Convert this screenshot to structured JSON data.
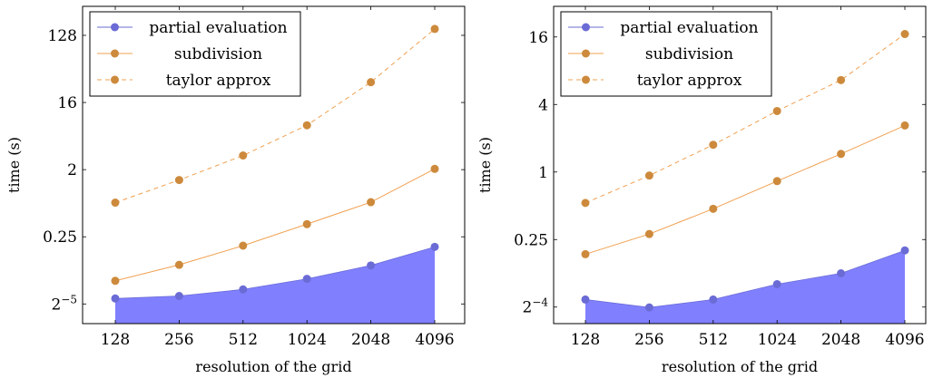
{
  "colors": {
    "partial": "#6b6bd6",
    "partial_fill": "#8080ff",
    "subdivision": "#f0a050",
    "taylor": "#f0a050",
    "marker_orange": "#cd8a3c",
    "marker_blue": "#6b6bd6"
  },
  "chart_data": [
    {
      "type": "line",
      "title": "",
      "xlabel": "resolution of the grid",
      "ylabel": "time (s)",
      "yscale": "log2",
      "categories": [
        "128",
        "256",
        "512",
        "1024",
        "2048",
        "4096"
      ],
      "ylim": [
        0.017,
        314
      ],
      "yticks": [
        {
          "value": 0.03125,
          "label": "2",
          "sup": "−5"
        },
        {
          "value": 0.25,
          "label": "0.25",
          "sup": ""
        },
        {
          "value": 2,
          "label": "2",
          "sup": ""
        },
        {
          "value": 16,
          "label": "16",
          "sup": ""
        },
        {
          "value": 128,
          "label": "128",
          "sup": ""
        }
      ],
      "legend": {
        "position": "top-left"
      },
      "series": [
        {
          "name": "partial evaluation",
          "style": "area",
          "values": [
            0.037,
            0.04,
            0.049,
            0.068,
            0.103,
            0.183
          ]
        },
        {
          "name": "subdivision",
          "style": "solid",
          "values": [
            0.064,
            0.105,
            0.19,
            0.37,
            0.73,
            2.05
          ]
        },
        {
          "name": "taylor approx",
          "style": "dashed",
          "values": [
            0.72,
            1.45,
            3.1,
            7.9,
            30,
            156
          ]
        }
      ]
    },
    {
      "type": "line",
      "title": "",
      "xlabel": "resolution of the grid",
      "ylabel": "time (s)",
      "yscale": "log2",
      "categories": [
        "128",
        "256",
        "512",
        "1024",
        "2048",
        "4096"
      ],
      "ylim": [
        0.0445,
        30.0
      ],
      "yticks": [
        {
          "value": 0.0625,
          "label": "2",
          "sup": "−4"
        },
        {
          "value": 0.25,
          "label": "0.25",
          "sup": ""
        },
        {
          "value": 1,
          "label": "1",
          "sup": ""
        },
        {
          "value": 4,
          "label": "4",
          "sup": ""
        },
        {
          "value": 16,
          "label": "16",
          "sup": ""
        }
      ],
      "legend": {
        "position": "top-left"
      },
      "series": [
        {
          "name": "partial evaluation",
          "style": "area",
          "values": [
            0.073,
            0.062,
            0.073,
            0.1,
            0.125,
            0.2
          ]
        },
        {
          "name": "subdivision",
          "style": "solid",
          "values": [
            0.185,
            0.28,
            0.47,
            0.83,
            1.45,
            2.6
          ]
        },
        {
          "name": "taylor approx",
          "style": "dashed",
          "values": [
            0.53,
            0.93,
            1.75,
            3.5,
            6.6,
            17.0
          ]
        }
      ]
    }
  ]
}
